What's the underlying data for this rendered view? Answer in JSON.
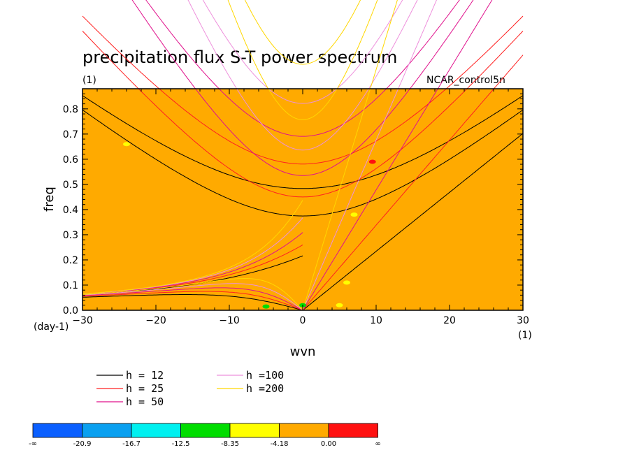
{
  "chart_data": {
    "type": "contour",
    "title": "precipitation flux S-T power spectrum",
    "units_label": "(1)",
    "dataset_label": "NCAR_control5n",
    "xlabel": "wvn",
    "ylabel": "freq",
    "x_units": "(1)",
    "y_units": "(day-1)",
    "xlim": [
      -30,
      30
    ],
    "ylim": [
      0,
      0.88
    ],
    "xticks": [
      -30,
      -20,
      -10,
      0,
      10,
      20,
      30
    ],
    "yticks": [
      0.0,
      0.1,
      0.2,
      0.3,
      0.4,
      0.5,
      0.6,
      0.7,
      0.8
    ],
    "background_color": "#ffaa00",
    "dispersion_curves": [
      {
        "name": "h = 12",
        "h": 12,
        "color": "#000000"
      },
      {
        "name": "h = 25",
        "h": 25,
        "color": "#ff2020"
      },
      {
        "name": "h = 50",
        "h": 50,
        "color": "#e0108c"
      },
      {
        "name": "h =100",
        "h": 100,
        "color": "#ee90dc"
      },
      {
        "name": "h =200",
        "h": 200,
        "color": "#ffd700"
      }
    ],
    "colorbar": {
      "colors": [
        "#0a5fff",
        "#0aa0f0",
        "#00f0f0",
        "#00dd00",
        "#ffff00",
        "#ffaa00",
        "#ff1010"
      ],
      "labels": [
        "-∞",
        "-20.9",
        "-16.7",
        "-12.5",
        "-8.35",
        "-4.18",
        "0.00",
        "∞"
      ]
    },
    "spots": [
      {
        "x": -5,
        "y": 0.015,
        "color": "#00dd00"
      },
      {
        "x": 0,
        "y": 0.02,
        "color": "#00dd00"
      },
      {
        "x": 5,
        "y": 0.02,
        "color": "#ffff00"
      },
      {
        "x": 6,
        "y": 0.11,
        "color": "#ffff00"
      },
      {
        "x": 9.5,
        "y": 0.59,
        "color": "#ff1010"
      },
      {
        "x": 7,
        "y": 0.38,
        "color": "#ffff00"
      },
      {
        "x": -24,
        "y": 0.66,
        "color": "#ffff00"
      }
    ]
  }
}
